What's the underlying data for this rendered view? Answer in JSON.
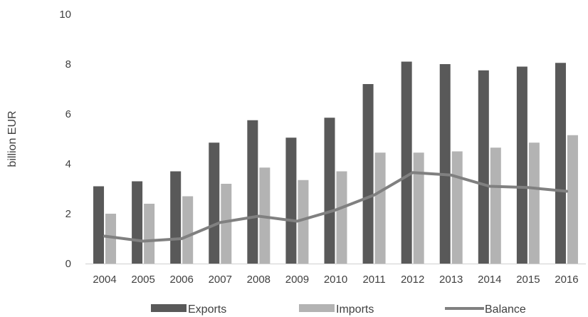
{
  "chart_data": {
    "type": "bar",
    "title": "",
    "xlabel": "",
    "ylabel": "billion EUR",
    "ylim": [
      0,
      10
    ],
    "yticks": [
      0,
      2,
      4,
      6,
      8,
      10
    ],
    "grid": false,
    "legend_position": "bottom",
    "categories": [
      "2004",
      "2005",
      "2006",
      "2007",
      "2008",
      "2009",
      "2010",
      "2011",
      "2012",
      "2013",
      "2014",
      "2015",
      "2016"
    ],
    "series": [
      {
        "name": "Exports",
        "type": "bar",
        "color": "#595959",
        "values": [
          3.1,
          3.3,
          3.7,
          4.85,
          5.75,
          5.05,
          5.85,
          7.2,
          8.1,
          8.0,
          7.75,
          7.9,
          8.05
        ]
      },
      {
        "name": "Imports",
        "type": "bar",
        "color": "#b3b3b3",
        "values": [
          2.0,
          2.4,
          2.7,
          3.2,
          3.85,
          3.35,
          3.7,
          4.45,
          4.45,
          4.5,
          4.65,
          4.85,
          5.15
        ]
      },
      {
        "name": "Balance",
        "type": "line",
        "color": "#808080",
        "values": [
          1.1,
          0.9,
          1.0,
          1.65,
          1.9,
          1.7,
          2.15,
          2.75,
          3.65,
          3.55,
          3.1,
          3.05,
          2.9
        ]
      }
    ]
  }
}
